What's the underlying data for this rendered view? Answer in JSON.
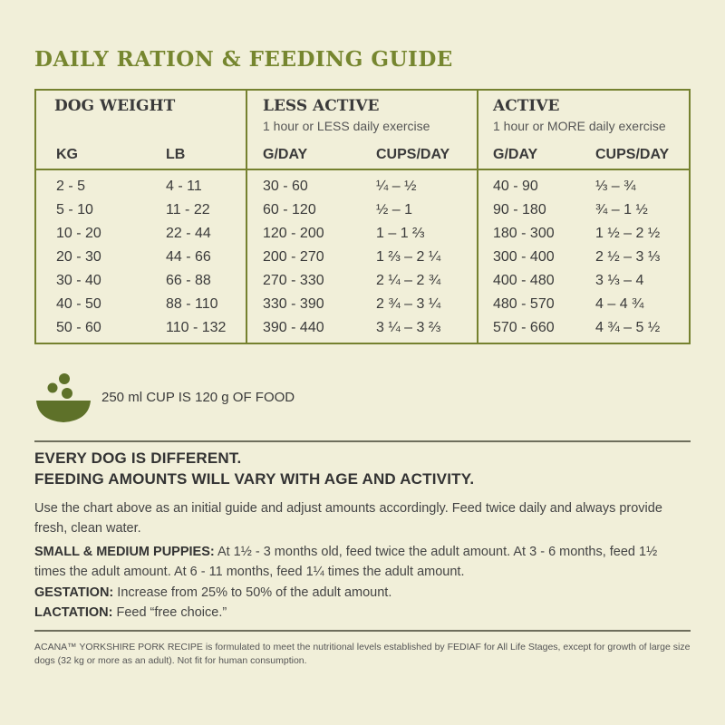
{
  "title": "DAILY RATION & FEEDING GUIDE",
  "table": {
    "dog_weight": {
      "heading": "DOG WEIGHT",
      "kg_label": "KG",
      "lb_label": "LB"
    },
    "less_active": {
      "heading": "LESS ACTIVE",
      "subheading": "1 hour or LESS daily exercise",
      "g_label": "G/DAY",
      "cups_label": "CUPS/DAY"
    },
    "active": {
      "heading": "ACTIVE",
      "subheading": "1 hour or MORE daily exercise",
      "g_label": "G/DAY",
      "cups_label": "CUPS/DAY"
    },
    "rows": [
      {
        "kg": "2 - 5",
        "lb": "4 - 11",
        "la_g": "30 - 60",
        "la_cups": "¼ – ½",
        "a_g": "40 - 90",
        "a_cups": "⅓ – ¾"
      },
      {
        "kg": "5 - 10",
        "lb": "11 - 22",
        "la_g": "60 - 120",
        "la_cups": "½ – 1",
        "a_g": "90 - 180",
        "a_cups": "¾ – 1 ½"
      },
      {
        "kg": "10 - 20",
        "lb": "22 - 44",
        "la_g": "120 - 200",
        "la_cups": "1 – 1 ⅔",
        "a_g": "180 - 300",
        "a_cups": "1 ½ – 2 ½"
      },
      {
        "kg": "20 - 30",
        "lb": "44 - 66",
        "la_g": "200 - 270",
        "la_cups": "1 ⅔ – 2 ¼",
        "a_g": "300 - 400",
        "a_cups": "2 ½ – 3 ⅓"
      },
      {
        "kg": "30 - 40",
        "lb": "66 - 88",
        "la_g": "270 - 330",
        "la_cups": "2 ¼ – 2 ¾",
        "a_g": "400 - 480",
        "a_cups": "3 ⅓ – 4"
      },
      {
        "kg": "40 - 50",
        "lb": "88 - 110",
        "la_g": "330 - 390",
        "la_cups": "2 ¾ – 3 ¼",
        "a_g": "480 - 570",
        "a_cups": "4 – 4 ¾"
      },
      {
        "kg": "50 - 60",
        "lb": "110 - 132",
        "la_g": "390 - 440",
        "la_cups": "3 ¼ – 3 ⅔",
        "a_g": "570 - 660",
        "a_cups": "4 ¾ – 5 ½"
      }
    ]
  },
  "cup_note": {
    "text": "250 ml CUP IS 120 g OF FOOD",
    "icon": "bowl-icon"
  },
  "notice": {
    "line1": "EVERY DOG IS DIFFERENT.",
    "line2": "FEEDING AMOUNTS WILL VARY WITH AGE AND ACTIVITY.",
    "intro": "Use the chart above as an initial guide and adjust amounts accordingly. Feed twice daily and always provide fresh, clean water.",
    "puppies_label": "SMALL & MEDIUM PUPPIES:",
    "puppies_text": " At 1½ - 3 months old, feed twice the adult amount. At 3 - 6 months, feed 1½ times the adult amount. At 6 - 11 months, feed 1¼ times the adult amount.",
    "gestation_label": "GESTATION:",
    "gestation_text": " Increase from 25% to 50% of the adult amount.",
    "lactation_label": "LACTATION:",
    "lactation_text": " Feed “free choice.”"
  },
  "footnote": "ACANA™ YORKSHIRE PORK RECIPE is formulated to meet the nutritional levels established by FEDIAF for All Life Stages, except for growth of large size dogs (32 kg or more as an adult). Not fit for human consumption.",
  "colors": {
    "accent": "#76862f",
    "border": "#75812f",
    "background": "#f1efd9",
    "bowl": "#5e7129"
  }
}
